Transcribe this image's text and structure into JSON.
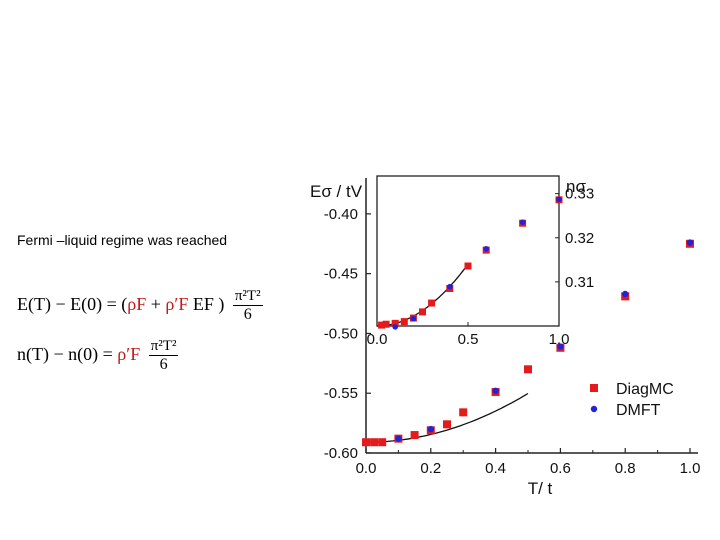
{
  "caption": "Fermi –liquid regime was reached",
  "formulas": {
    "energy": {
      "lhs": "E(T) − E(0) = (",
      "rho1": "ρF",
      "plus": " + ",
      "rho2": "ρ′F",
      "ef": " EF )",
      "num": "π²T²",
      "den": "6"
    },
    "density": {
      "lhs": "n(T) − n(0) =",
      "rho": "ρ′F",
      "num": "π²T²",
      "den": "6"
    }
  },
  "chart_data": [
    {
      "type": "scatter",
      "title": "",
      "xlabel": "T/ t",
      "ylabel": "Eσ / tV",
      "xlim": [
        0.0,
        1.0
      ],
      "ylim": [
        -0.6,
        -0.37
      ],
      "xticks": [
        "0.0",
        "0.2",
        "0.4",
        "0.6",
        "0.8",
        "1.0"
      ],
      "yticks": [
        "-0.60",
        "-0.55",
        "-0.50",
        "-0.45",
        "-0.40"
      ],
      "legend": "center-right",
      "series": [
        {
          "name": "DiagMC",
          "color": "#e41a1c",
          "marker": "square",
          "x": [
            0.0,
            0.025,
            0.05,
            0.1,
            0.15,
            0.2,
            0.25,
            0.3,
            0.4,
            0.5,
            0.6,
            0.8,
            1.0
          ],
          "y": [
            -0.591,
            -0.591,
            -0.591,
            -0.588,
            -0.585,
            -0.581,
            -0.576,
            -0.566,
            -0.549,
            -0.53,
            -0.512,
            -0.469,
            -0.425
          ]
        },
        {
          "name": "DMFT",
          "color": "#2323d6",
          "marker": "circle",
          "x": [
            0.1,
            0.2,
            0.4,
            0.6,
            0.8,
            1.0
          ],
          "y": [
            -0.588,
            -0.58,
            -0.548,
            -0.511,
            -0.467,
            -0.424
          ]
        }
      ],
      "fit_curve": {
        "x_range": [
          0.0,
          0.5
        ],
        "y0": -0.591,
        "coef": 0.163
      }
    },
    {
      "type": "scatter",
      "title": "",
      "xlabel": "",
      "ylabel": "nσ",
      "xlim": [
        0.0,
        1.0
      ],
      "ylim": [
        0.3,
        0.334
      ],
      "xticks": [
        "0.0",
        "0.5",
        "1.0"
      ],
      "yticks": [
        "0.31",
        "0.32",
        "0.33"
      ],
      "series": [
        {
          "name": "DiagMC",
          "color": "#e41a1c",
          "marker": "square",
          "x": [
            0.025,
            0.05,
            0.1,
            0.15,
            0.2,
            0.25,
            0.3,
            0.4,
            0.5,
            0.6,
            0.8,
            1.0
          ],
          "y": [
            0.3002,
            0.3004,
            0.3006,
            0.301,
            0.3018,
            0.3032,
            0.3052,
            0.3085,
            0.3136,
            0.3172,
            0.3233,
            0.3286
          ]
        },
        {
          "name": "DMFT",
          "color": "#2323d6",
          "marker": "circle",
          "x": [
            0.1,
            0.2,
            0.4,
            0.6,
            0.8,
            1.0
          ],
          "y": [
            0.2998,
            0.3017,
            0.3089,
            0.3175,
            0.3235,
            0.3287
          ]
        }
      ],
      "fit_curve": {
        "x_range": [
          0.0,
          0.5
        ],
        "y0": 0.3,
        "coef": 0.056
      }
    }
  ]
}
